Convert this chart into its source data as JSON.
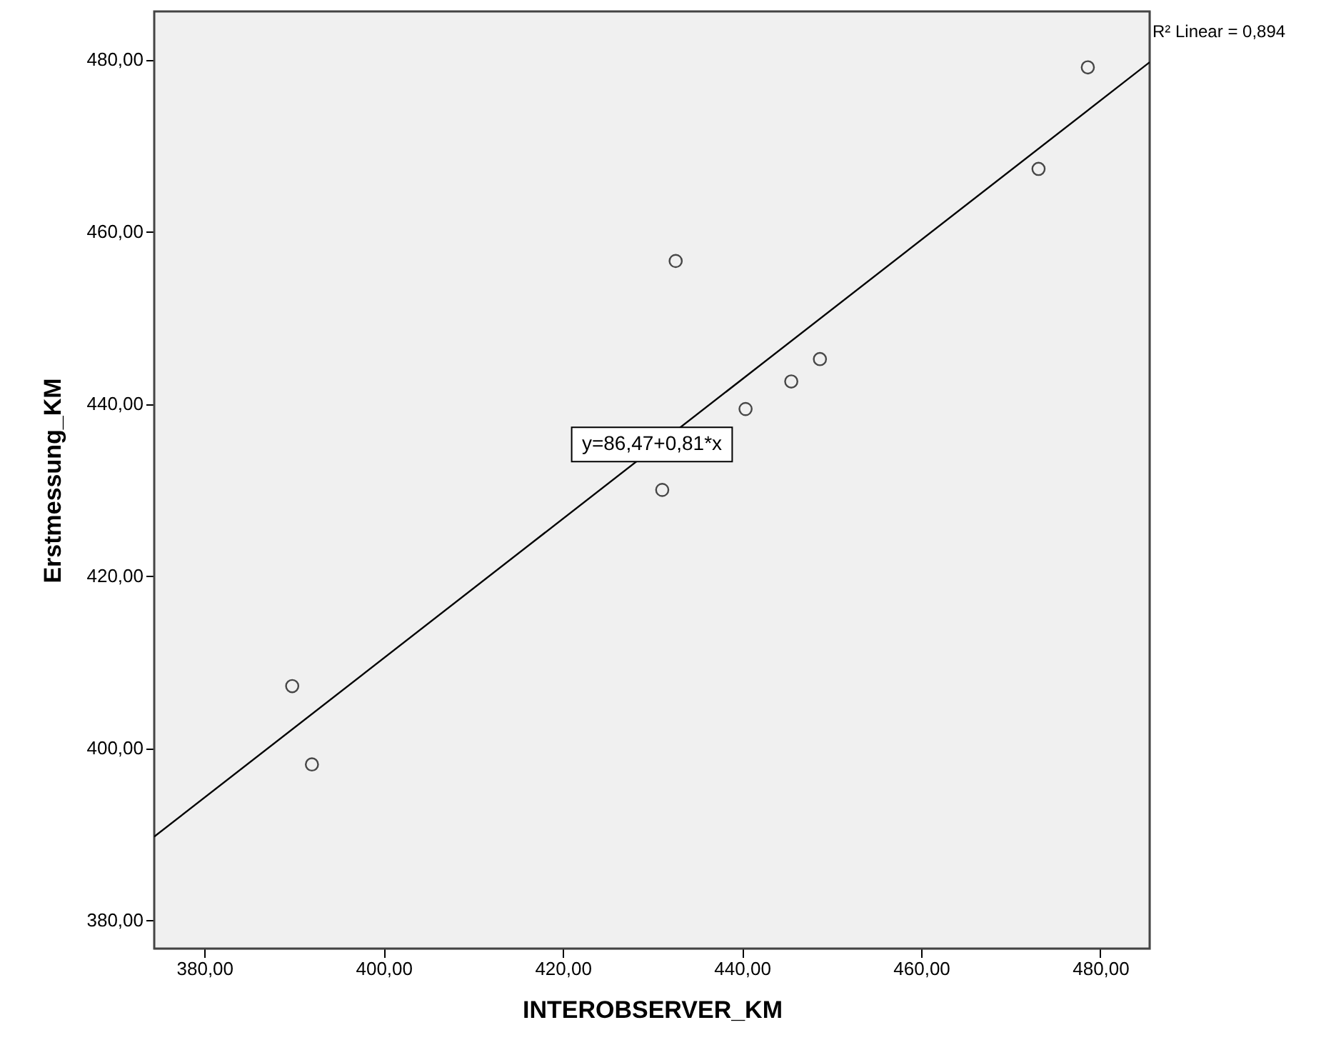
{
  "chart_data": {
    "type": "scatter",
    "xlabel": "INTEROBSERVER_KM",
    "ylabel": "Erstmessung_KM",
    "xlim": [
      374.4,
      485.5
    ],
    "ylim": [
      376.7,
      485.6
    ],
    "xticks": [
      {
        "value": 380,
        "label": "380,00"
      },
      {
        "value": 400,
        "label": "400,00"
      },
      {
        "value": 420,
        "label": "420,00"
      },
      {
        "value": 440,
        "label": "440,00"
      },
      {
        "value": 460,
        "label": "460,00"
      },
      {
        "value": 480,
        "label": "480,00"
      }
    ],
    "yticks": [
      {
        "value": 380,
        "label": "380,00"
      },
      {
        "value": 400,
        "label": "400,00"
      },
      {
        "value": 420,
        "label": "420,00"
      },
      {
        "value": 440,
        "label": "440,00"
      },
      {
        "value": 460,
        "label": "460,00"
      },
      {
        "value": 480,
        "label": "480,00"
      }
    ],
    "marker": "circle",
    "series": [
      {
        "color": "#000000",
        "x": [
          389.8,
          392.0,
          432.6,
          431.1,
          440.4,
          445.5,
          448.7,
          473.1,
          478.6
        ],
        "values": [
          407.2,
          398.1,
          456.6,
          430.0,
          439.4,
          442.6,
          445.2,
          467.3,
          479.1
        ]
      },
      {
        "type": "line",
        "color": "#000000",
        "marker": "none",
        "x": [
          374.4,
          485.5
        ],
        "values": [
          389.7,
          479.7
        ]
      }
    ],
    "annotations": [
      "y=86,47+0,81*x",
      "R² Linear = 0,894"
    ]
  }
}
